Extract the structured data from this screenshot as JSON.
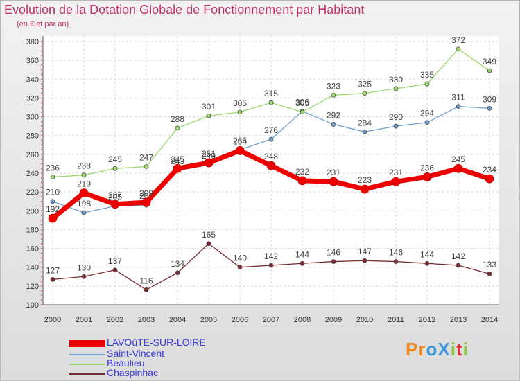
{
  "chart_data": {
    "type": "line",
    "title": "Evolution de la Dotation Globale de Fonctionnement par Habitant",
    "subtitle": "(en € et par an)",
    "x": [
      "2000",
      "2001",
      "2002",
      "2003",
      "2004",
      "2005",
      "2006",
      "2007",
      "2008",
      "2009",
      "2010",
      "2011",
      "2012",
      "2013",
      "2014"
    ],
    "yticks": [
      100,
      120,
      140,
      160,
      180,
      200,
      220,
      240,
      260,
      280,
      300,
      320,
      340,
      360,
      380
    ],
    "ylim": [
      100,
      380
    ],
    "grid": true,
    "legend_position": "bottom-left",
    "series": [
      {
        "name": "Saint-Vincent",
        "color": "#6f9fd0",
        "values": [
          210,
          198,
          205,
          206,
          243,
          249,
          265,
          276,
          306,
          292,
          284,
          290,
          294,
          311,
          309
        ]
      },
      {
        "name": "Beaulieu",
        "color": "#9ad96a",
        "values": [
          236,
          238,
          245,
          247,
          288,
          301,
          305,
          315,
          305,
          323,
          325,
          330,
          335,
          372,
          349
        ]
      },
      {
        "name": "Chaspinhac",
        "color": "#7a2a30",
        "values": [
          127,
          130,
          137,
          116,
          134,
          165,
          140,
          142,
          144,
          146,
          147,
          146,
          144,
          142,
          133
        ]
      },
      {
        "name": "LAVOûTE-SUR-LOIRE",
        "color": "#ee0000",
        "values": [
          192,
          219,
          207,
          209,
          245,
          251,
          264,
          248,
          232,
          231,
          223,
          231,
          236,
          245,
          234
        ]
      }
    ]
  },
  "legend_order": [
    "LAVOûTE-SUR-LOIRE",
    "Saint-Vincent",
    "Beaulieu",
    "Chaspinhac"
  ],
  "logo": {
    "text": "ProXiti",
    "colors": [
      "#f08a1e",
      "#f08a1e",
      "#3a9ad9",
      "#3a9ad9",
      "#8cc63f",
      "#e0303a",
      "#8cc63f"
    ]
  }
}
